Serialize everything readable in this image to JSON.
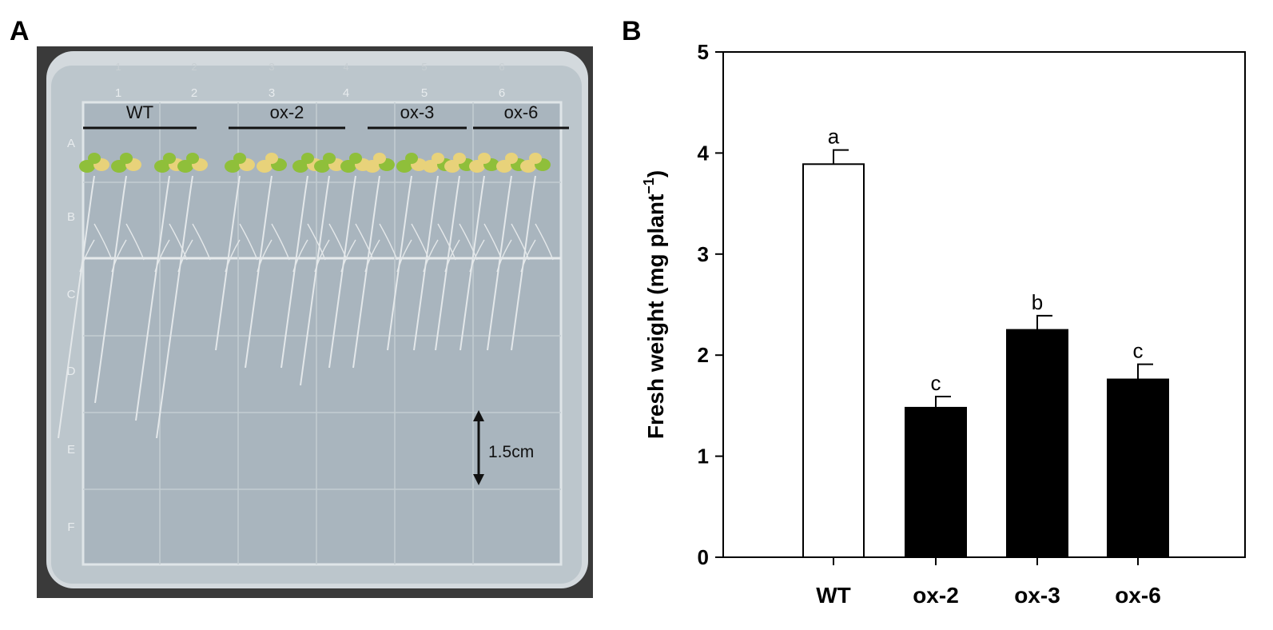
{
  "panels": {
    "a_label": "A",
    "b_label": "B"
  },
  "photo": {
    "groups": [
      "WT",
      "ox-2",
      "ox-3",
      "ox-6"
    ],
    "column_numbers": [
      "1",
      "2",
      "3",
      "4",
      "5",
      "6"
    ],
    "row_letters": [
      "A",
      "B",
      "C",
      "D",
      "E",
      "F"
    ],
    "scale_bar_label": "1.5cm",
    "colors": {
      "frame": "#3a3a3a",
      "agar": "#a9b5be",
      "rim": "#d7dde1",
      "root": "#e4e8ea",
      "leaf": "#8fbf3a",
      "leaf_yellow": "#e8d27a"
    }
  },
  "chart_data": {
    "type": "bar",
    "categories": [
      "WT",
      "ox-2",
      "ox-3",
      "ox-6"
    ],
    "values": [
      3.89,
      1.48,
      2.25,
      1.76
    ],
    "errors": [
      0.14,
      0.11,
      0.14,
      0.15
    ],
    "significance_letters": [
      "a",
      "c",
      "b",
      "c"
    ],
    "bar_colors": [
      "#ffffff",
      "#000000",
      "#000000",
      "#000000"
    ],
    "ylabel_main": "Fresh weight (mg plant",
    "ylabel_superscript": "−1",
    "ylabel_close": ")",
    "xlabel": "",
    "ylim": [
      0,
      5
    ],
    "yticks": [
      "0",
      "1",
      "2",
      "3",
      "4",
      "5"
    ],
    "grid": false,
    "legend": "none"
  }
}
